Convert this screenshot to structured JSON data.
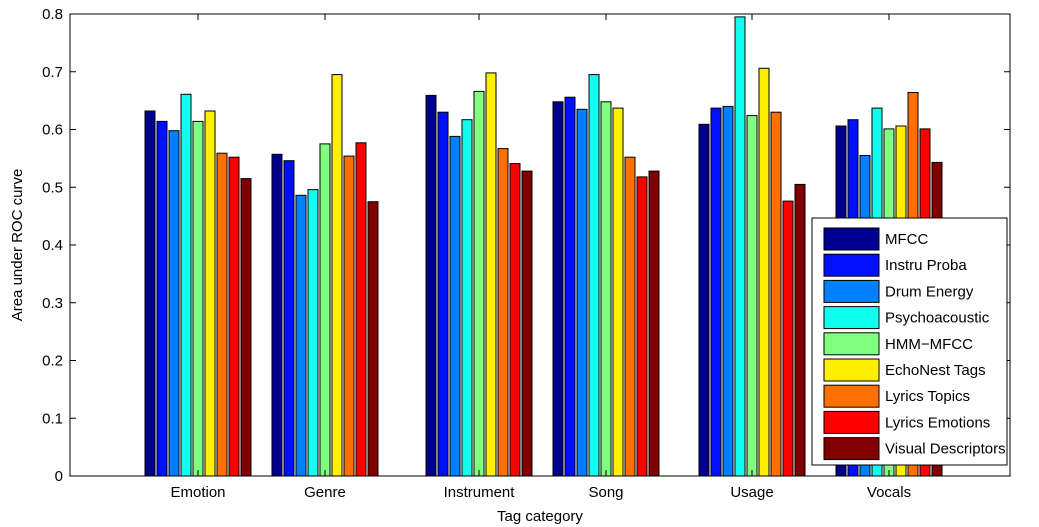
{
  "chart_data": {
    "type": "bar",
    "xlabel": "Tag category",
    "ylabel": "Area under ROC curve",
    "ylim": [
      0,
      0.8
    ],
    "yticks": [
      "0",
      "0.1",
      "0.2",
      "0.3",
      "0.4",
      "0.5",
      "0.6",
      "0.7",
      "0.8"
    ],
    "grid": false,
    "legend_position": "bottom-right",
    "categories": [
      "Emotion",
      "Genre",
      "Instrument",
      "Song",
      "Usage",
      "Vocals"
    ],
    "series": [
      {
        "name": "MFCC",
        "color": "#00008f",
        "values": [
          0.632,
          0.557,
          0.659,
          0.648,
          0.609,
          0.606
        ]
      },
      {
        "name": "Instru Proba",
        "color": "#0010ff",
        "values": [
          0.614,
          0.546,
          0.63,
          0.656,
          0.637,
          0.617
        ]
      },
      {
        "name": "Drum Energy",
        "color": "#0080ff",
        "values": [
          0.598,
          0.486,
          0.588,
          0.635,
          0.64,
          0.555
        ]
      },
      {
        "name": "Psychoacoustic",
        "color": "#10ffef",
        "values": [
          0.661,
          0.496,
          0.617,
          0.695,
          0.795,
          0.637
        ]
      },
      {
        "name": "HMM−MFCC",
        "color": "#80ff80",
        "values": [
          0.614,
          0.575,
          0.666,
          0.648,
          0.624,
          0.601
        ]
      },
      {
        "name": "EchoNest Tags",
        "color": "#ffef00",
        "values": [
          0.632,
          0.695,
          0.698,
          0.637,
          0.706,
          0.606
        ]
      },
      {
        "name": "Lyrics Topics",
        "color": "#ff7000",
        "values": [
          0.559,
          0.554,
          0.567,
          0.552,
          0.63,
          0.664
        ]
      },
      {
        "name": "Lyrics Emotions",
        "color": "#ff0000",
        "values": [
          0.552,
          0.577,
          0.541,
          0.518,
          0.476,
          0.601
        ]
      },
      {
        "name": "Visual Descriptors",
        "color": "#800000",
        "values": [
          0.515,
          0.475,
          0.528,
          0.528,
          0.505,
          0.543
        ]
      }
    ]
  }
}
